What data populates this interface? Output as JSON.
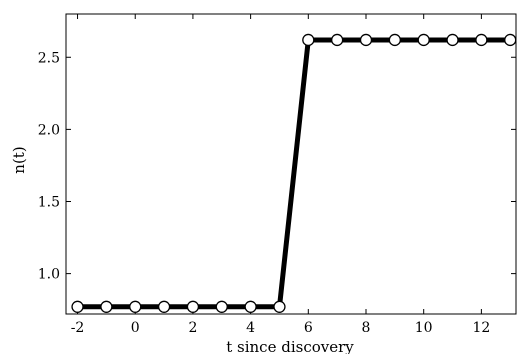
{
  "chart_data": {
    "type": "line",
    "title": "",
    "xlabel": "t since discovery",
    "ylabel": "n(t)",
    "xlim": [
      -2.4,
      13.2
    ],
    "ylim": [
      0.72,
      2.8
    ],
    "grid": false,
    "legend": "none",
    "x_ticks": [
      -2,
      0,
      2,
      4,
      6,
      8,
      10,
      12
    ],
    "x_tick_labels": [
      "-2",
      "0",
      "2",
      "4",
      "6",
      "8",
      "10",
      "12"
    ],
    "y_ticks": [
      1.0,
      1.5,
      2.0,
      2.5
    ],
    "y_tick_labels": [
      "1.0",
      "1.5",
      "2.0",
      "2.5"
    ],
    "series": [
      {
        "x": [
          -2,
          -1,
          0,
          1,
          2,
          3,
          4,
          5,
          6,
          7,
          8,
          9,
          10,
          11,
          12,
          13
        ],
        "y": [
          0.77,
          0.77,
          0.77,
          0.77,
          0.77,
          0.77,
          0.77,
          0.77,
          2.62,
          2.62,
          2.62,
          2.62,
          2.62,
          2.62,
          2.62,
          2.62
        ],
        "line_color": "#000000",
        "marker": "circle",
        "marker_face": "#ffffff",
        "marker_edge": "#000000"
      }
    ]
  }
}
